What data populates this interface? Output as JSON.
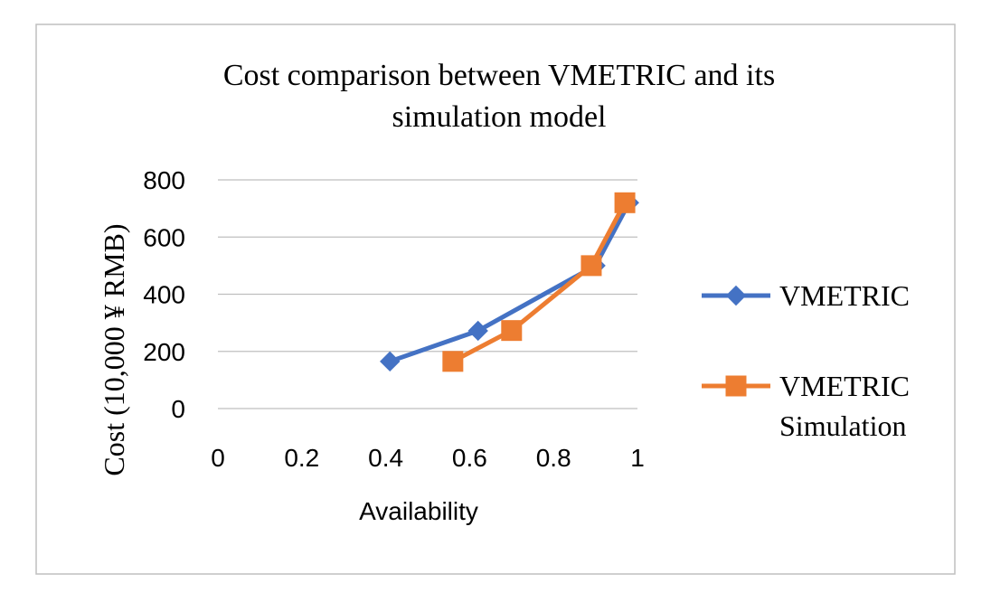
{
  "chart_data": {
    "type": "scatter",
    "title": "Cost comparison between VMETRIC and its simulation model",
    "title_lines": [
      "Cost comparison between VMETRIC and its",
      "simulation model"
    ],
    "xlabel": "Availability",
    "ylabel": "Cost (10,000 ¥ RMB)",
    "xlim": [
      0,
      1
    ],
    "ylim": [
      0,
      800
    ],
    "x_ticks": [
      "0",
      "0.2",
      "0.4",
      "0.6",
      "0.8",
      "1"
    ],
    "y_ticks": [
      "0",
      "200",
      "400",
      "600",
      "800"
    ],
    "x_tick_values": [
      0,
      0.2,
      0.4,
      0.6,
      0.8,
      1
    ],
    "y_tick_values": [
      0,
      200,
      400,
      600,
      800
    ],
    "grid": true,
    "legend_position": "right",
    "series": [
      {
        "name": "VMETRIC",
        "legend_lines": [
          "VMETRIC"
        ],
        "color": "#4472C4",
        "marker": "diamond",
        "x": [
          0.41,
          0.62,
          0.9,
          0.98
        ],
        "y": [
          165,
          272,
          500,
          720
        ]
      },
      {
        "name": "VMETRIC Simulation",
        "legend_lines": [
          "VMETRIC",
          "Simulation"
        ],
        "color": "#ED7D31",
        "marker": "square",
        "x": [
          0.56,
          0.7,
          0.89,
          0.97
        ],
        "y": [
          165,
          273,
          500,
          720
        ]
      }
    ]
  }
}
